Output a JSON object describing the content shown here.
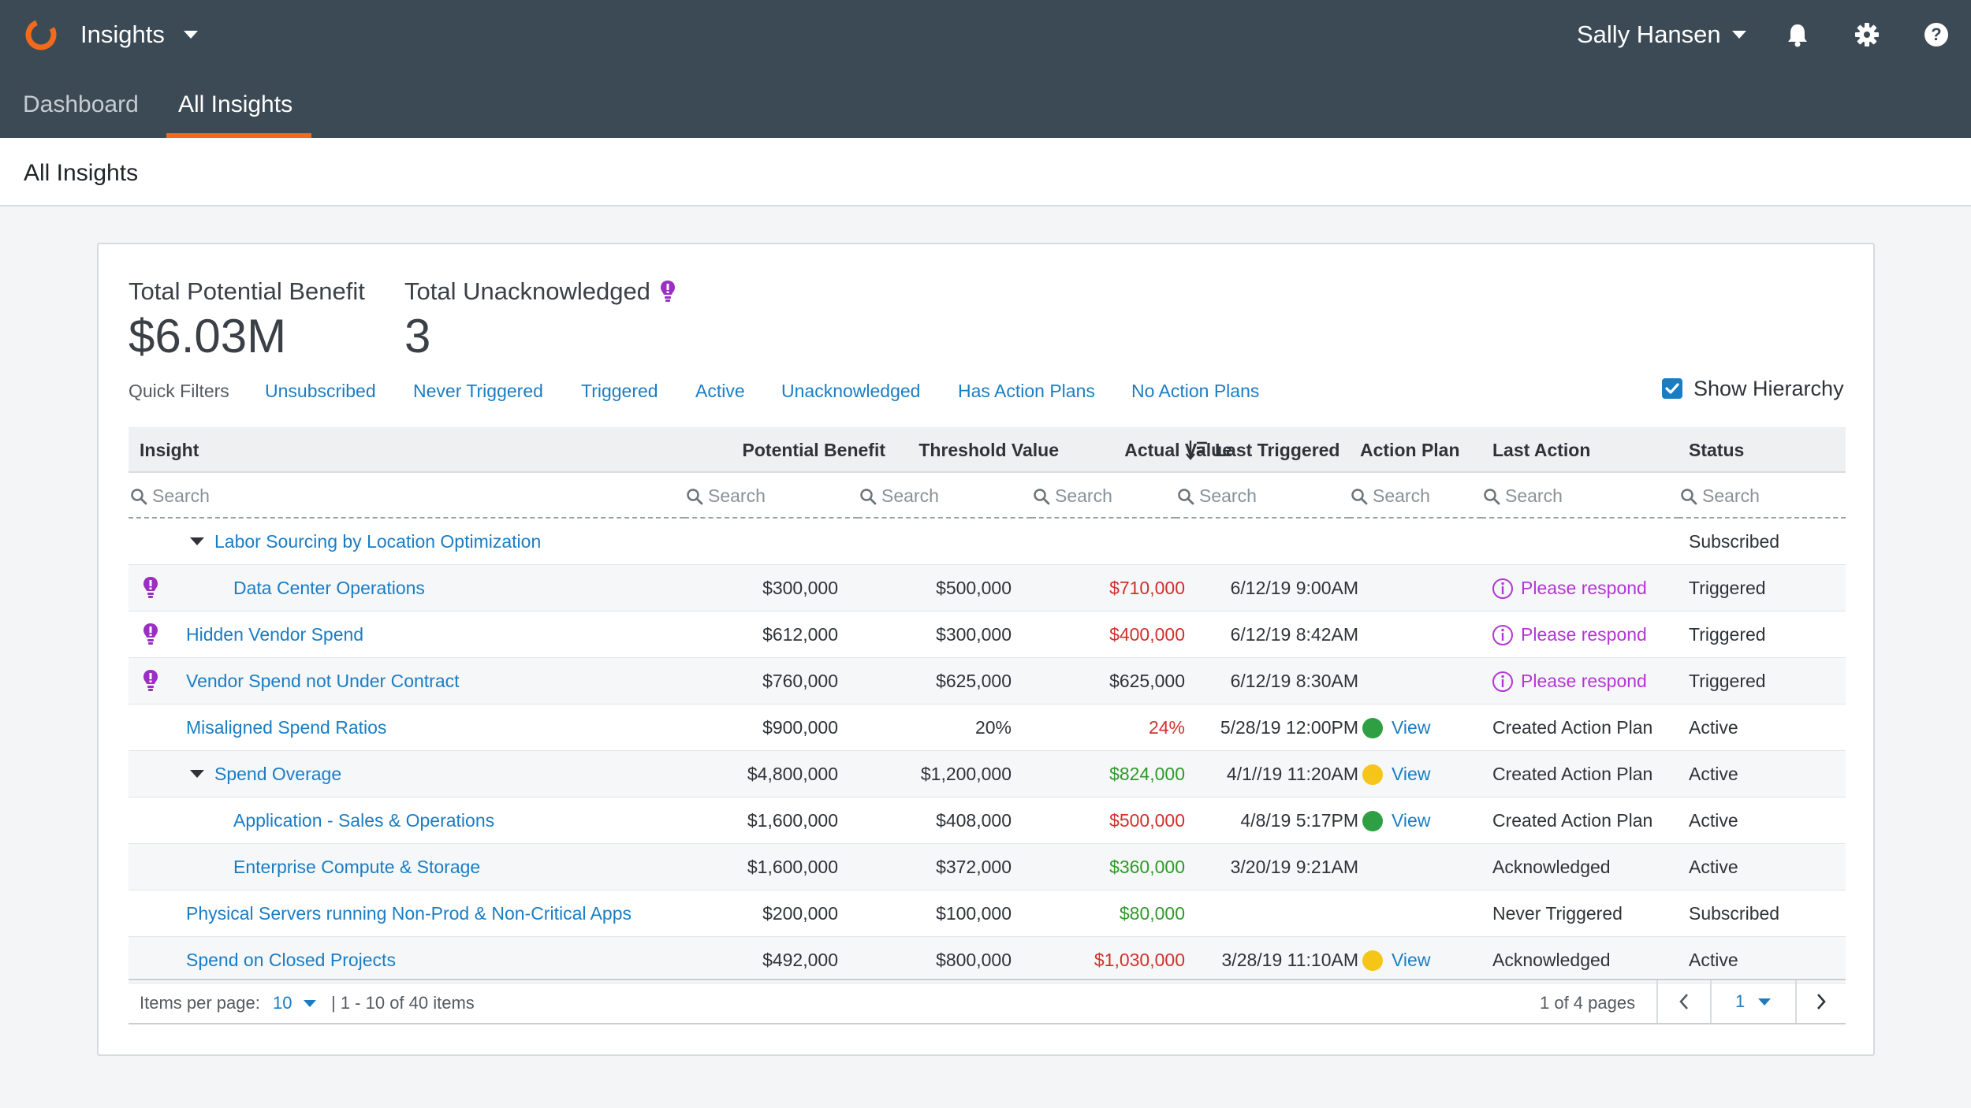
{
  "app": {
    "name": "Insights"
  },
  "user": {
    "name": "Sally Hansen"
  },
  "tabs": [
    {
      "label": "Dashboard",
      "active": false
    },
    {
      "label": "All Insights",
      "active": true
    }
  ],
  "page": {
    "title": "All Insights"
  },
  "stats": {
    "total_benefit_label": "Total Potential Benefit",
    "total_benefit_value": "$6.03M",
    "total_unack_label": "Total Unacknowledged",
    "total_unack_value": "3"
  },
  "quick_filters": {
    "label": "Quick Filters",
    "items": [
      "Unsubscribed",
      "Never Triggered",
      "Triggered",
      "Active",
      "Unacknowledged",
      "Has Action Plans",
      "No Action Plans"
    ]
  },
  "show_hierarchy": {
    "label": "Show Hierarchy",
    "checked": true
  },
  "table": {
    "columns": [
      "Insight",
      "Potential Benefit",
      "Threshold Value",
      "Actual Value",
      "Last Triggered",
      "Action Plan",
      "Last Action",
      "Status"
    ],
    "search_placeholder": "Search",
    "rows": [
      {
        "insight": "Labor Sourcing by Location Optimization",
        "benefit": "",
        "threshold": "",
        "actual": "",
        "actual_color": "",
        "last_triggered": "",
        "plan_dot": "",
        "plan_label": "",
        "last_action": "",
        "last_action_alert": false,
        "status": "Subscribed",
        "unack": false,
        "expand": true
      },
      {
        "insight": "Data Center Operations",
        "benefit": "$300,000",
        "threshold": "$500,000",
        "actual": "$710,000",
        "actual_color": "red",
        "last_triggered": "6/12/19 9:00AM",
        "plan_dot": "",
        "plan_label": "",
        "last_action": "Please respond",
        "last_action_alert": true,
        "status": "Triggered",
        "unack": true,
        "expand": false
      },
      {
        "insight": "Hidden Vendor Spend",
        "benefit": "$612,000",
        "threshold": "$300,000",
        "actual": "$400,000",
        "actual_color": "red",
        "last_triggered": "6/12/19 8:42AM",
        "plan_dot": "",
        "plan_label": "",
        "last_action": "Please respond",
        "last_action_alert": true,
        "status": "Triggered",
        "unack": true,
        "expand": false
      },
      {
        "insight": "Vendor Spend not Under Contract",
        "benefit": "$760,000",
        "threshold": "$625,000",
        "actual": "$625,000",
        "actual_color": "",
        "last_triggered": "6/12/19 8:30AM",
        "plan_dot": "",
        "plan_label": "",
        "last_action": "Please respond",
        "last_action_alert": true,
        "status": "Triggered",
        "unack": true,
        "expand": false
      },
      {
        "insight": "Misaligned Spend Ratios",
        "benefit": "$900,000",
        "threshold": "20%",
        "actual": "24%",
        "actual_color": "red",
        "last_triggered": "5/28/19 12:00PM",
        "plan_dot": "#2ea043",
        "plan_label": "View",
        "last_action": "Created Action Plan",
        "last_action_alert": false,
        "status": "Active",
        "unack": false,
        "expand": false
      },
      {
        "insight": "Spend Overage",
        "benefit": "$4,800,000",
        "threshold": "$1,200,000",
        "actual": "$824,000",
        "actual_color": "green",
        "last_triggered": "4/1//19 11:20AM",
        "plan_dot": "#f5c518",
        "plan_label": "View",
        "last_action": "Created Action Plan",
        "last_action_alert": false,
        "status": "Active",
        "unack": false,
        "expand": true
      },
      {
        "insight": "Application - Sales & Operations",
        "benefit": "$1,600,000",
        "threshold": "$408,000",
        "actual": "$500,000",
        "actual_color": "red",
        "last_triggered": "4/8/19 5:17PM",
        "plan_dot": "#2ea043",
        "plan_label": "View",
        "last_action": "Created Action Plan",
        "last_action_alert": false,
        "status": "Active",
        "unack": false,
        "expand": false
      },
      {
        "insight": "Enterprise Compute & Storage",
        "benefit": "$1,600,000",
        "threshold": "$372,000",
        "actual": "$360,000",
        "actual_color": "green",
        "last_triggered": "3/20/19 9:21AM",
        "plan_dot": "",
        "plan_label": "",
        "last_action": "Acknowledged",
        "last_action_alert": false,
        "status": "Active",
        "unack": false,
        "expand": false
      },
      {
        "insight": "Physical Servers running Non-Prod & Non-Critical Apps",
        "benefit": "$200,000",
        "threshold": "$100,000",
        "actual": "$80,000",
        "actual_color": "green",
        "last_triggered": "",
        "plan_dot": "",
        "plan_label": "",
        "last_action": "Never Triggered",
        "last_action_alert": false,
        "status": "Subscribed",
        "unack": false,
        "expand": false
      },
      {
        "insight": "Spend on Closed Projects",
        "benefit": "$492,000",
        "threshold": "$800,000",
        "actual": "$1,030,000",
        "actual_color": "red",
        "last_triggered": "3/28/19 11:10AM",
        "plan_dot": "#f5c518",
        "plan_label": "View",
        "last_action": "Acknowledged",
        "last_action_alert": false,
        "status": "Active",
        "unack": false,
        "expand": false
      }
    ]
  },
  "pagination": {
    "items_per_page_label": "Items per page:",
    "items_per_page": "10",
    "range": "| 1 - 10 of 40 items",
    "pages": "1 of 4 pages",
    "current_page": "1"
  },
  "colors": {
    "topbar": "#3c4a55",
    "accent": "#f26b1d",
    "link": "#1a7dc4",
    "negative": "#d0312d",
    "positive": "#2f9a2a",
    "alert": "#b435d6"
  },
  "icons": [
    "app-logo-icon",
    "caret-down-icon",
    "bell-icon",
    "gear-icon",
    "help-icon",
    "lightbulb-icon",
    "sort-descending-icon",
    "search-icon",
    "info-icon",
    "checkbox-checked-icon",
    "chevron-left-icon",
    "chevron-right-icon"
  ]
}
